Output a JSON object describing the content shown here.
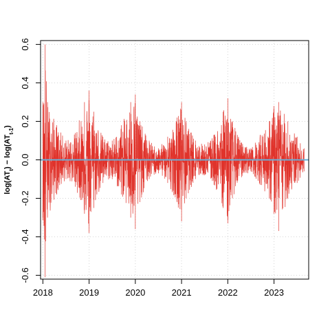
{
  "chart_data": {
    "type": "line",
    "title": "",
    "xlabel": "",
    "ylabel_parts": {
      "log1": "log(AT",
      "sub1": "t",
      "mid": ") − log(AT",
      "sub2": "t-1",
      "end": ")"
    },
    "x_tick_labels": [
      "2018",
      "2019",
      "2020",
      "2021",
      "2022",
      "2023"
    ],
    "x_tick_values": [
      2018,
      2019,
      2020,
      2021,
      2022,
      2023
    ],
    "xlim": [
      2017.95,
      2023.75
    ],
    "y_tick_labels": [
      "-0.6",
      "-0.4",
      "-0.2",
      "0.0",
      "0.2",
      "0.4",
      "0.6"
    ],
    "y_tick_values": [
      -0.6,
      -0.4,
      -0.2,
      0.0,
      0.2,
      0.4,
      0.6
    ],
    "ylim": [
      -0.62,
      0.62
    ],
    "grid": true,
    "series": [
      {
        "color": "#e0332b",
        "x_range": [
          2018.0,
          2023.65
        ],
        "envelope": {
          "x": [
            2018.0,
            2018.05,
            2018.1,
            2018.3,
            2018.5,
            2018.7,
            2018.9,
            2019.0,
            2019.1,
            2019.3,
            2019.5,
            2019.7,
            2019.9,
            2020.0,
            2020.1,
            2020.3,
            2020.5,
            2020.7,
            2020.9,
            2021.0,
            2021.1,
            2021.3,
            2021.5,
            2021.7,
            2021.9,
            2022.0,
            2022.1,
            2022.3,
            2022.5,
            2022.7,
            2022.9,
            2023.0,
            2023.1,
            2023.3,
            2023.5,
            2023.65
          ],
          "upper": [
            0.3,
            0.6,
            0.3,
            0.18,
            0.1,
            0.14,
            0.3,
            0.36,
            0.25,
            0.12,
            0.1,
            0.18,
            0.3,
            0.34,
            0.2,
            0.1,
            0.06,
            0.12,
            0.22,
            0.3,
            0.2,
            0.1,
            0.08,
            0.13,
            0.25,
            0.32,
            0.2,
            0.09,
            0.06,
            0.13,
            0.2,
            0.28,
            0.3,
            0.2,
            0.12,
            0.06
          ],
          "lower": [
            -0.3,
            -0.61,
            -0.3,
            -0.18,
            -0.1,
            -0.14,
            -0.28,
            -0.38,
            -0.25,
            -0.12,
            -0.1,
            -0.18,
            -0.3,
            -0.36,
            -0.22,
            -0.1,
            -0.07,
            -0.12,
            -0.22,
            -0.32,
            -0.2,
            -0.1,
            -0.08,
            -0.13,
            -0.25,
            -0.33,
            -0.2,
            -0.09,
            -0.06,
            -0.13,
            -0.2,
            -0.28,
            -0.37,
            -0.2,
            -0.12,
            -0.06
          ]
        }
      }
    ],
    "reference_line": {
      "y": 0.0,
      "color": "#6aaed6"
    }
  }
}
